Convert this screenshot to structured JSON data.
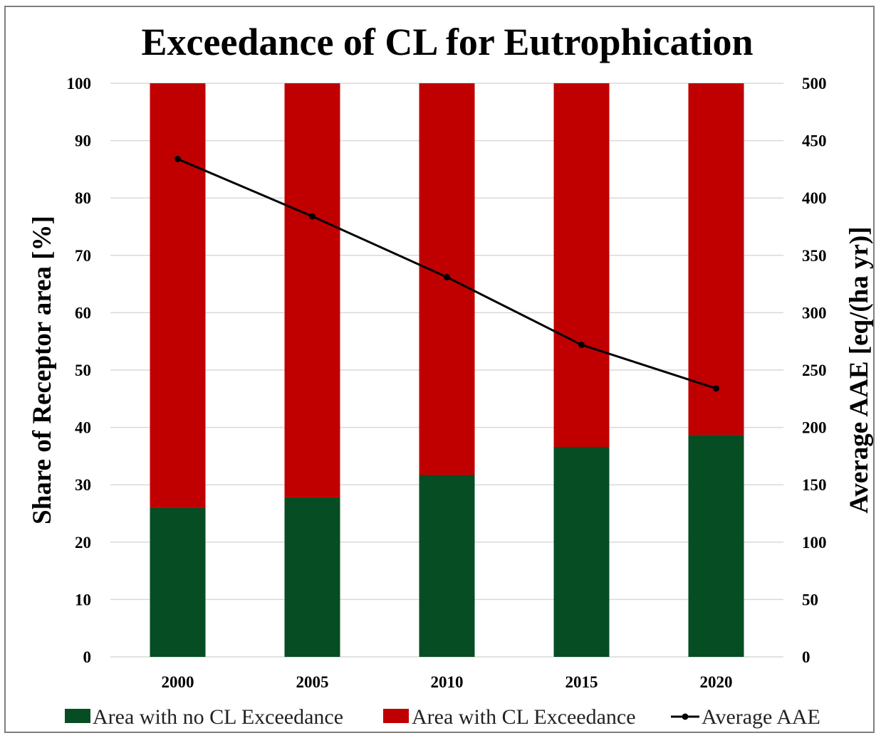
{
  "chart_data": {
    "type": "bar",
    "stacked": true,
    "title": "Exceedance of CL for Eutrophication",
    "categories": [
      "2000",
      "2005",
      "2010",
      "2015",
      "2020"
    ],
    "series": [
      {
        "name": "Area with no CL Exceedance",
        "kind": "bar",
        "axis": "left",
        "color": "#064d24",
        "values": [
          26,
          27.8,
          31.7,
          36.6,
          38.7
        ]
      },
      {
        "name": "Area with CL Exceedance",
        "kind": "bar",
        "axis": "left",
        "color": "#c00000",
        "values": [
          74,
          72.2,
          68.3,
          63.4,
          61.3
        ]
      },
      {
        "name": "Average AAE",
        "kind": "line",
        "axis": "right",
        "color": "#000000",
        "values": [
          434,
          384,
          331,
          272,
          234
        ]
      }
    ],
    "ylabel": "Share of Receptor area [%]",
    "ylabel_right": "Average AAE [eq/(ha yr)]",
    "ylim": [
      0,
      100
    ],
    "ylim_right": [
      0,
      500
    ],
    "yticks": [
      "0",
      "10",
      "20",
      "30",
      "40",
      "50",
      "60",
      "70",
      "80",
      "90",
      "100"
    ],
    "yticks_right": [
      "0",
      "50",
      "100",
      "150",
      "200",
      "250",
      "300",
      "350",
      "400",
      "450",
      "500"
    ],
    "grid": true,
    "legend_position": "bottom"
  }
}
